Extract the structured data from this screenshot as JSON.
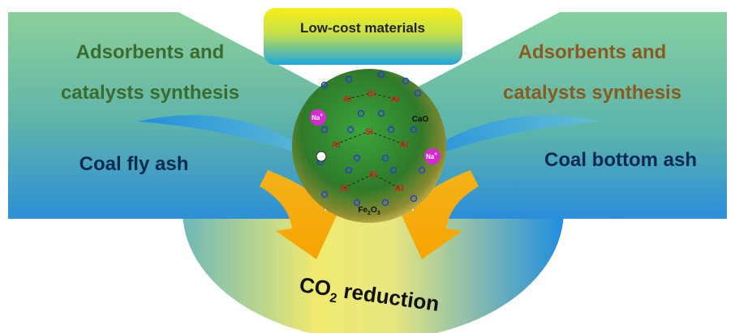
{
  "banner": "Low-cost materials",
  "left": {
    "heading": [
      "Adsorbents and",
      "catalysts synthesis"
    ],
    "source": "Coal fly ash"
  },
  "right": {
    "heading": [
      "Adsorbents and",
      "catalysts synthesis"
    ],
    "source": "Coal bottom ash"
  },
  "sphere": {
    "al": "Al",
    "si": "Si",
    "na": {
      "symbol": "Na",
      "charge": "+"
    },
    "cao": "CaO",
    "fe2o3": {
      "fe": "Fe",
      "fe_sub": "2",
      "o": "O",
      "o_sub": "3"
    }
  },
  "result": {
    "co": "CO",
    "sub": "2",
    "rest": " reduction"
  }
}
